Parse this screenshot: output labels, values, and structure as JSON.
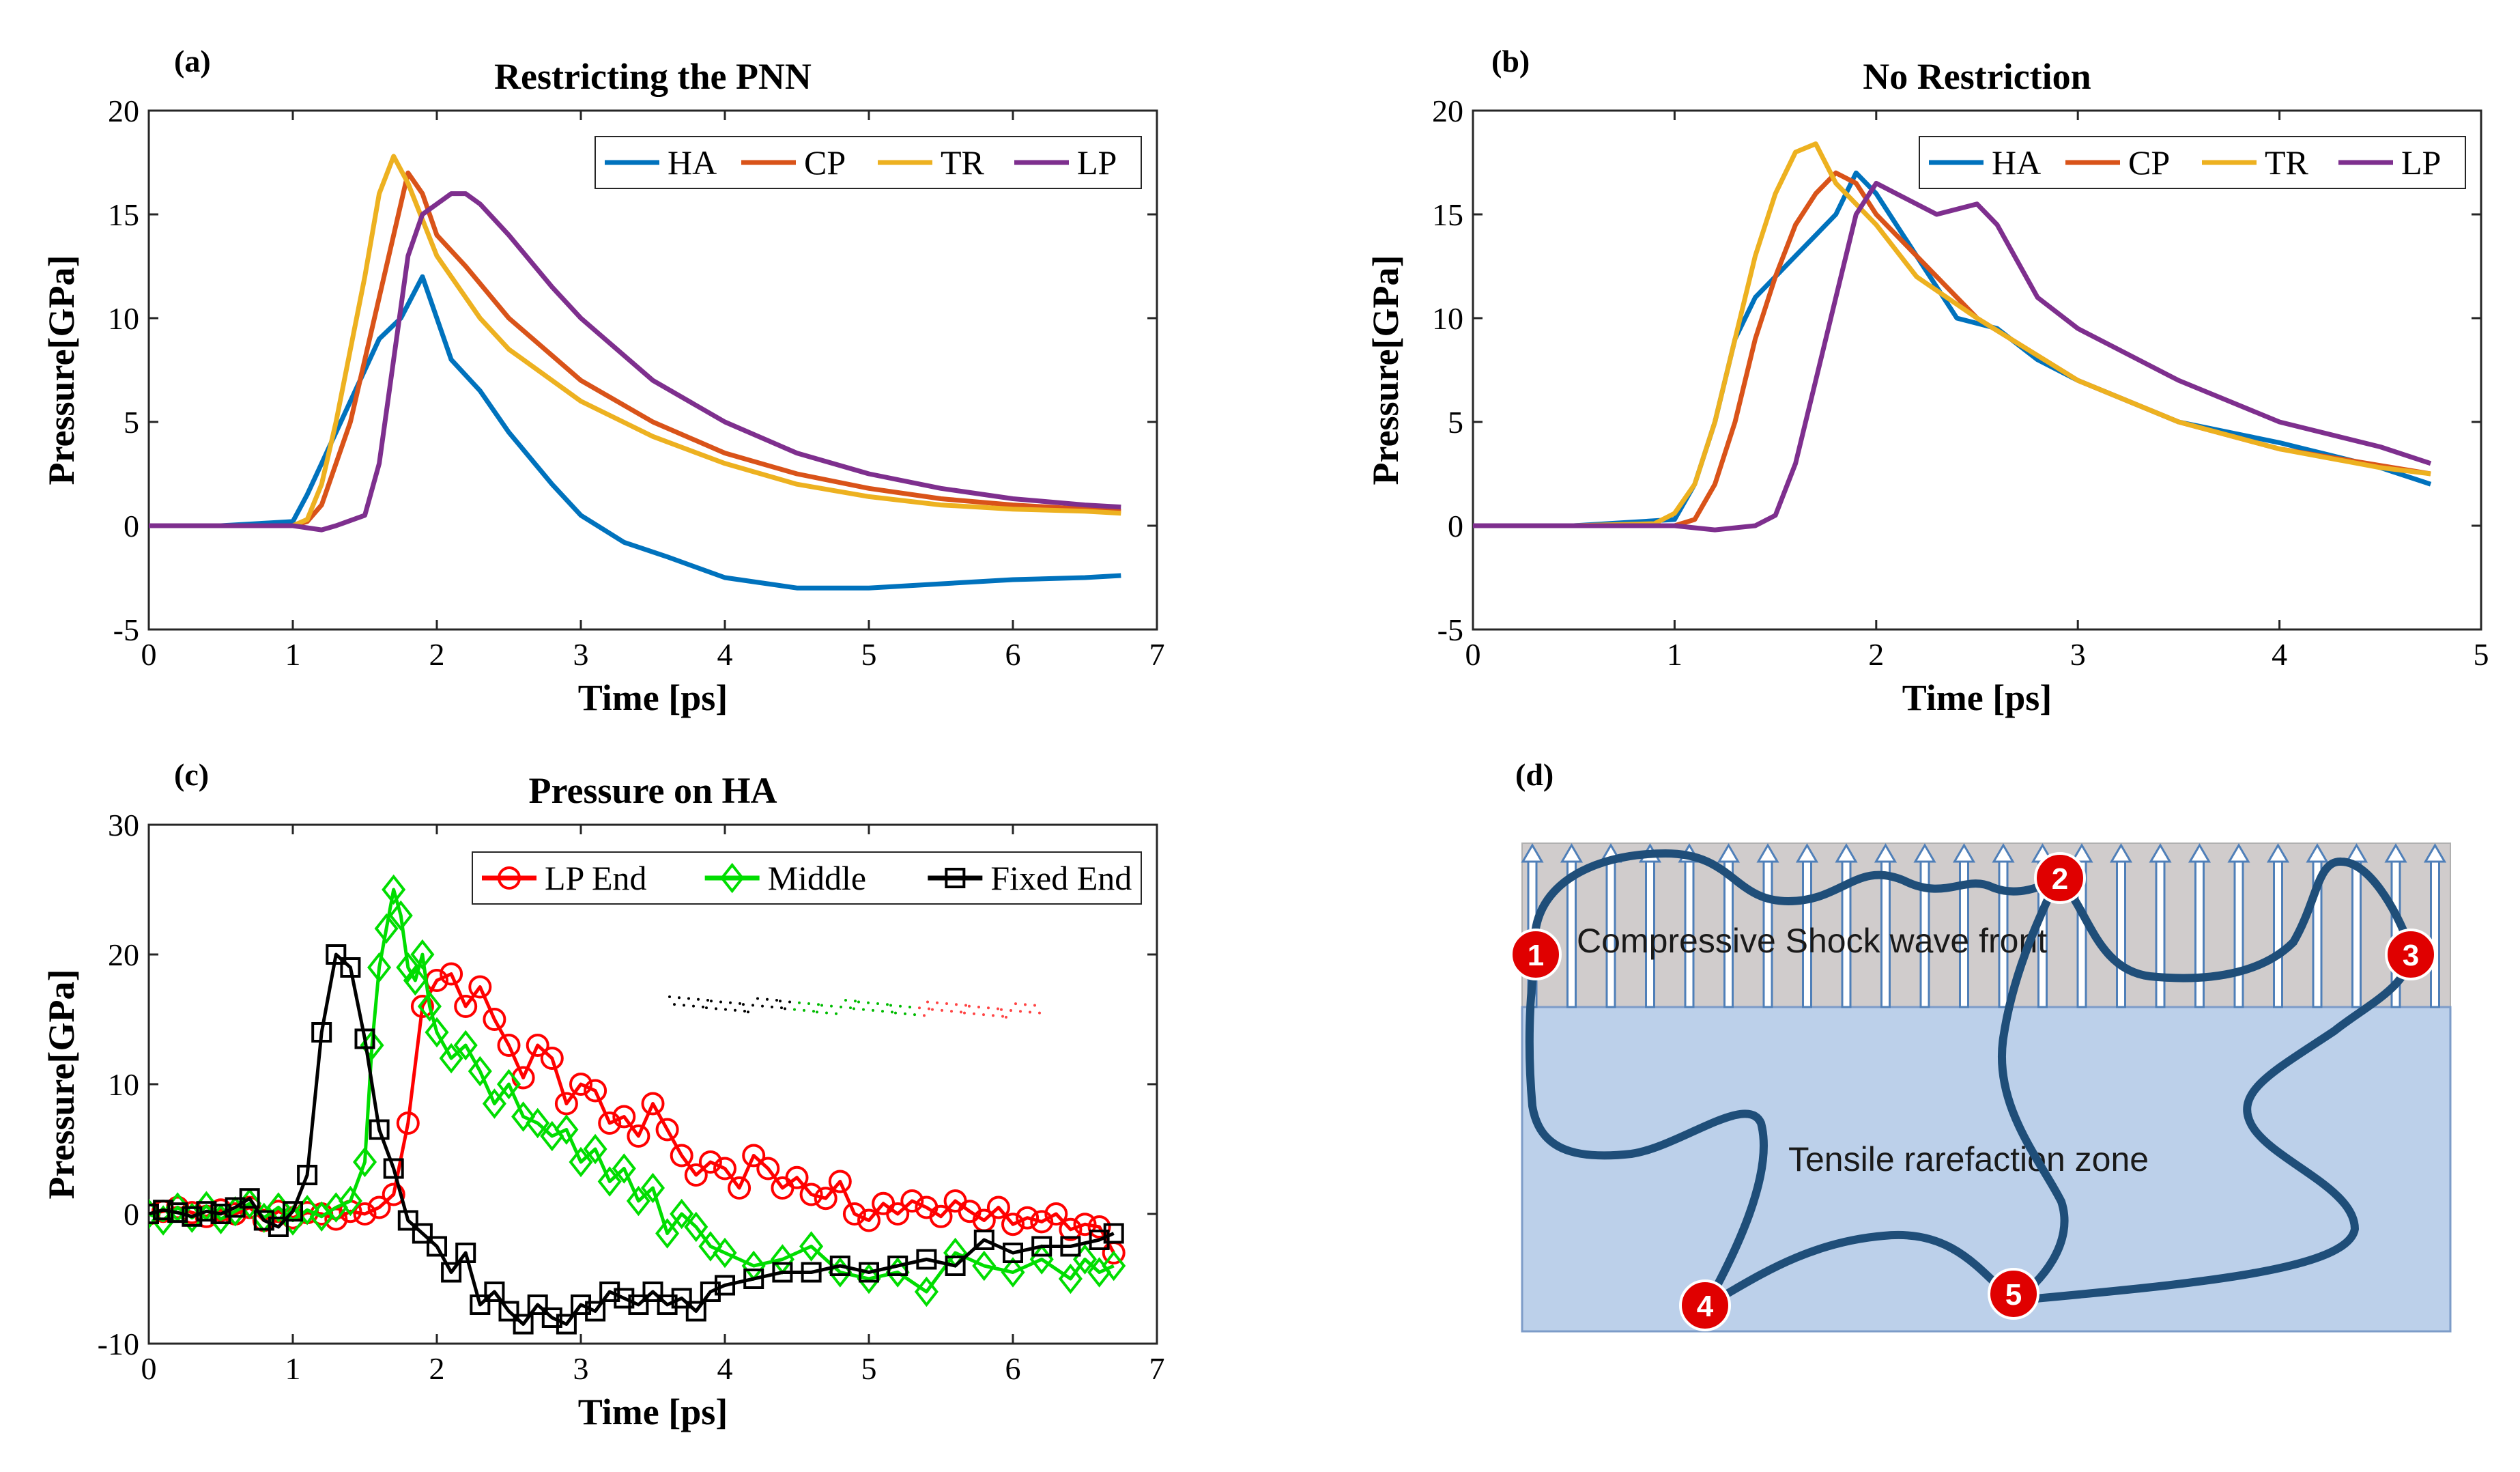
{
  "panels": {
    "a": {
      "label": "(a)"
    },
    "b": {
      "label": "(b)"
    },
    "c": {
      "label": "(c)"
    },
    "d": {
      "label": "(d)"
    }
  },
  "colors": {
    "HA": "#0072BD",
    "CP": "#D95319",
    "TR": "#EDB120",
    "LP": "#7E2F8E",
    "LP End": "#FF0000",
    "Middle": "#00DD00",
    "Fixed End": "#000000"
  },
  "chart_data": [
    {
      "id": "a",
      "type": "line",
      "title": "Restricting the PNN",
      "xlabel": "Time [ps]",
      "ylabel": "Pressure[GPa]",
      "xlim": [
        0,
        7
      ],
      "ylim": [
        -5,
        20
      ],
      "xticks": [
        0,
        1,
        2,
        3,
        4,
        5,
        6,
        7
      ],
      "yticks": [
        -5,
        0,
        5,
        10,
        15,
        20
      ],
      "legend_position": "top-right",
      "series": [
        {
          "name": "HA",
          "x": [
            0,
            0.5,
            1.0,
            1.1,
            1.2,
            1.4,
            1.6,
            1.75,
            1.9,
            2.0,
            2.1,
            2.3,
            2.5,
            2.8,
            3.0,
            3.3,
            3.6,
            4.0,
            4.5,
            5.0,
            5.5,
            6.0,
            6.5,
            6.75
          ],
          "y": [
            0,
            0,
            0.2,
            1.5,
            3,
            6,
            9,
            10,
            12,
            10,
            8,
            6.5,
            4.5,
            2,
            0.5,
            -0.8,
            -1.5,
            -2.5,
            -3,
            -3,
            -2.8,
            -2.6,
            -2.5,
            -2.4
          ]
        },
        {
          "name": "CP",
          "x": [
            0,
            0.5,
            1.0,
            1.1,
            1.2,
            1.4,
            1.6,
            1.7,
            1.8,
            1.9,
            2.0,
            2.2,
            2.5,
            2.8,
            3.0,
            3.5,
            4.0,
            4.5,
            5.0,
            5.5,
            6.0,
            6.5,
            6.75
          ],
          "y": [
            0,
            0,
            0,
            0.2,
            1,
            5,
            11,
            14,
            17,
            16,
            14,
            12.5,
            10,
            8.2,
            7,
            5,
            3.5,
            2.5,
            1.8,
            1.3,
            1,
            0.8,
            0.7
          ]
        },
        {
          "name": "TR",
          "x": [
            0,
            0.5,
            1.0,
            1.1,
            1.2,
            1.3,
            1.5,
            1.6,
            1.7,
            1.8,
            2.0,
            2.3,
            2.5,
            3.0,
            3.5,
            4.0,
            4.5,
            5.0,
            5.5,
            6.0,
            6.5,
            6.75
          ],
          "y": [
            0,
            0,
            0,
            0.3,
            2,
            5,
            12,
            16,
            17.8,
            16.5,
            13,
            10,
            8.5,
            6,
            4.3,
            3,
            2,
            1.4,
            1,
            0.8,
            0.7,
            0.6
          ]
        },
        {
          "name": "LP",
          "x": [
            0,
            0.5,
            1.0,
            1.2,
            1.3,
            1.5,
            1.6,
            1.7,
            1.8,
            1.9,
            2.0,
            2.1,
            2.2,
            2.3,
            2.5,
            2.8,
            3.0,
            3.5,
            4.0,
            4.5,
            5.0,
            5.5,
            6.0,
            6.5,
            6.75
          ],
          "y": [
            0,
            0,
            0,
            -0.2,
            0,
            0.5,
            3,
            8,
            13,
            15,
            15.5,
            16,
            16,
            15.5,
            14,
            11.5,
            10,
            7,
            5,
            3.5,
            2.5,
            1.8,
            1.3,
            1,
            0.9
          ]
        }
      ]
    },
    {
      "id": "b",
      "type": "line",
      "title": "No Restriction",
      "xlabel": "Time [ps]",
      "ylabel": "Pressure[GPa]",
      "xlim": [
        0,
        5
      ],
      "ylim": [
        -5,
        20
      ],
      "xticks": [
        0,
        1,
        2,
        3,
        4,
        5
      ],
      "yticks": [
        -5,
        0,
        5,
        10,
        15,
        20
      ],
      "legend_position": "top-right",
      "series": [
        {
          "name": "HA",
          "x": [
            0,
            0.5,
            1.0,
            1.1,
            1.2,
            1.3,
            1.4,
            1.5,
            1.6,
            1.7,
            1.8,
            1.9,
            2.0,
            2.2,
            2.4,
            2.6,
            2.8,
            3.0,
            3.5,
            4.0,
            4.5,
            4.75
          ],
          "y": [
            0,
            0,
            0.3,
            2,
            5,
            9,
            11,
            12,
            13,
            14,
            15,
            17,
            16,
            13,
            10,
            9.5,
            8,
            7,
            5,
            4,
            2.8,
            2
          ]
        },
        {
          "name": "CP",
          "x": [
            0,
            0.5,
            1.0,
            1.1,
            1.2,
            1.3,
            1.4,
            1.5,
            1.6,
            1.7,
            1.8,
            1.9,
            2.0,
            2.2,
            2.5,
            3.0,
            3.5,
            4.0,
            4.5,
            4.75
          ],
          "y": [
            0,
            0,
            0,
            0.3,
            2,
            5,
            9,
            12,
            14.5,
            16,
            17,
            16.5,
            15,
            13,
            10,
            7,
            5,
            3.7,
            2.9,
            2.5
          ]
        },
        {
          "name": "TR",
          "x": [
            0,
            0.5,
            0.9,
            1.0,
            1.1,
            1.2,
            1.3,
            1.4,
            1.5,
            1.6,
            1.7,
            1.8,
            2.0,
            2.2,
            2.5,
            3.0,
            3.5,
            4.0,
            4.5,
            4.75
          ],
          "y": [
            0,
            0,
            0.1,
            0.6,
            2,
            5,
            9,
            13,
            16,
            18,
            18.4,
            16.5,
            14.5,
            12,
            10,
            7,
            5,
            3.7,
            2.8,
            2.5
          ]
        },
        {
          "name": "LP",
          "x": [
            0,
            0.5,
            1.0,
            1.2,
            1.4,
            1.5,
            1.6,
            1.7,
            1.8,
            1.9,
            2.0,
            2.1,
            2.3,
            2.5,
            2.6,
            2.8,
            3.0,
            3.5,
            4.0,
            4.5,
            4.75
          ],
          "y": [
            0,
            0,
            0,
            -0.2,
            0,
            0.5,
            3,
            7,
            11,
            15,
            16.5,
            16,
            15,
            15.5,
            14.5,
            11,
            9.5,
            7,
            5,
            3.8,
            3
          ]
        }
      ]
    },
    {
      "id": "c",
      "type": "line",
      "title": "Pressure on HA",
      "xlabel": "Time [ps]",
      "ylabel": "Pressure[GPa]",
      "xlim": [
        0,
        7
      ],
      "ylim": [
        -10,
        30
      ],
      "xticks": [
        0,
        1,
        2,
        3,
        4,
        5,
        6,
        7
      ],
      "yticks": [
        -10,
        0,
        10,
        20,
        30
      ],
      "legend_position": "top-right",
      "series": [
        {
          "name": "LP End",
          "marker": "circle",
          "x": [
            0,
            0.1,
            0.2,
            0.3,
            0.4,
            0.5,
            0.6,
            0.7,
            0.8,
            0.9,
            1.0,
            1.1,
            1.2,
            1.3,
            1.4,
            1.5,
            1.6,
            1.7,
            1.8,
            1.9,
            2.0,
            2.1,
            2.2,
            2.3,
            2.4,
            2.5,
            2.6,
            2.7,
            2.8,
            2.9,
            3.0,
            3.1,
            3.2,
            3.3,
            3.4,
            3.5,
            3.6,
            3.7,
            3.8,
            3.9,
            4.0,
            4.1,
            4.2,
            4.3,
            4.4,
            4.5,
            4.6,
            4.7,
            4.8,
            4.9,
            5.0,
            5.1,
            5.2,
            5.3,
            5.4,
            5.5,
            5.6,
            5.7,
            5.8,
            5.9,
            6.0,
            6.1,
            6.2,
            6.3,
            6.4,
            6.5,
            6.6,
            6.7
          ],
          "y": [
            0,
            0.2,
            0.5,
            0.1,
            -0.2,
            0.3,
            0,
            0.5,
            -0.5,
            0.2,
            -0.3,
            0.1,
            0,
            -0.4,
            0.2,
            0,
            0.5,
            1.5,
            7,
            16,
            18,
            18.5,
            16,
            17.5,
            15,
            13,
            10.5,
            13,
            12,
            8.5,
            10,
            9.5,
            7,
            7.5,
            6,
            8.5,
            6.5,
            4.5,
            3,
            4,
            3.5,
            2,
            4.5,
            3.5,
            2,
            2.8,
            1.5,
            1.2,
            2.5,
            0,
            -0.5,
            0.8,
            0,
            1,
            0.5,
            -0.2,
            1,
            0.2,
            -0.5,
            0.5,
            -0.8,
            -0.3,
            -0.6,
            0,
            -1.2,
            -0.8,
            -1,
            -3
          ]
        },
        {
          "name": "Middle",
          "marker": "diamond",
          "x": [
            0,
            0.1,
            0.2,
            0.3,
            0.4,
            0.5,
            0.6,
            0.7,
            0.8,
            0.9,
            1.0,
            1.1,
            1.2,
            1.3,
            1.4,
            1.5,
            1.55,
            1.6,
            1.65,
            1.7,
            1.75,
            1.8,
            1.85,
            1.9,
            1.95,
            2.0,
            2.1,
            2.2,
            2.3,
            2.4,
            2.5,
            2.6,
            2.7,
            2.8,
            2.9,
            3.0,
            3.1,
            3.2,
            3.3,
            3.4,
            3.5,
            3.6,
            3.7,
            3.8,
            3.9,
            4.0,
            4.2,
            4.4,
            4.6,
            4.8,
            5.0,
            5.2,
            5.4,
            5.6,
            5.8,
            6.0,
            6.2,
            6.4,
            6.5,
            6.6,
            6.7
          ],
          "y": [
            0,
            -0.5,
            0.5,
            -0.3,
            0.6,
            -0.4,
            0.2,
            0.8,
            -0.3,
            0.5,
            -0.5,
            0.3,
            -0.2,
            0.5,
            1,
            4,
            13,
            19,
            22,
            25,
            23,
            19,
            18,
            20,
            16,
            14,
            12,
            13,
            11,
            8.5,
            10,
            7.5,
            7,
            6,
            6.5,
            4,
            5,
            2.5,
            3.5,
            1,
            2,
            -1.5,
            0,
            -1,
            -2.5,
            -3,
            -4,
            -3.5,
            -2.5,
            -4.5,
            -5,
            -4.5,
            -6,
            -3,
            -4,
            -4.5,
            -3.5,
            -5,
            -3.5,
            -4.5,
            -4
          ]
        },
        {
          "name": "Fixed End",
          "marker": "square",
          "x": [
            0,
            0.1,
            0.2,
            0.3,
            0.4,
            0.5,
            0.6,
            0.7,
            0.8,
            0.9,
            1.0,
            1.1,
            1.2,
            1.3,
            1.4,
            1.5,
            1.6,
            1.7,
            1.8,
            1.9,
            2.0,
            2.1,
            2.2,
            2.3,
            2.4,
            2.5,
            2.6,
            2.7,
            2.8,
            2.9,
            3.0,
            3.1,
            3.2,
            3.3,
            3.4,
            3.5,
            3.6,
            3.7,
            3.8,
            3.9,
            4.0,
            4.2,
            4.4,
            4.6,
            4.8,
            5.0,
            5.2,
            5.4,
            5.6,
            5.8,
            6.0,
            6.2,
            6.4,
            6.6,
            6.7
          ],
          "y": [
            0,
            0.3,
            0.1,
            -0.2,
            0.2,
            0,
            0.5,
            1.2,
            -0.5,
            -1,
            0.2,
            3,
            14,
            20,
            19,
            13.5,
            6.5,
            3.5,
            -0.5,
            -1.5,
            -2.5,
            -4.5,
            -3,
            -7,
            -6,
            -7.5,
            -8.5,
            -7,
            -8,
            -8.5,
            -7,
            -7.5,
            -6,
            -6.5,
            -7,
            -6,
            -7,
            -6.5,
            -7.5,
            -6,
            -5.5,
            -5,
            -4.5,
            -4.5,
            -4,
            -4.5,
            -4,
            -3.5,
            -4,
            -2,
            -3,
            -2.5,
            -2.5,
            -2,
            -1.5
          ]
        }
      ]
    }
  ],
  "diagram_d": {
    "top_label": "Compressive Shock wave front",
    "bottom_label": "Tensile rarefaction zone",
    "nodes": [
      "1",
      "2",
      "3",
      "4",
      "5"
    ]
  }
}
